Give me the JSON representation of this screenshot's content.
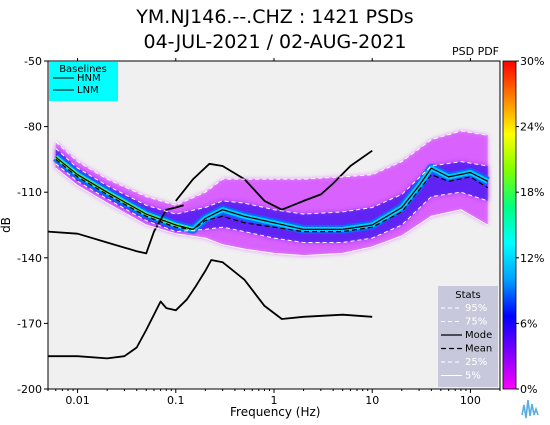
{
  "header": {
    "title_line1": "YM.NJ146.--.CHZ : 1421 PSDs",
    "title_line2": "04-JUL-2021 / 02-AUG-2021",
    "pdf_label": "PSD PDF"
  },
  "colors": {
    "plot_background": "#f0f0f0",
    "baselines_legend_bg": "#00ffff",
    "stats_legend_bg": "#c8c8dc",
    "noise_model_lines": "#000000"
  },
  "chart_data": {
    "type": "heatmap",
    "xlabel": "Frequency (Hz)",
    "ylabel": "dB",
    "x_scale": "log",
    "xlim": [
      0.005,
      200
    ],
    "ylim": [
      -200,
      -50
    ],
    "x_ticks": [
      {
        "value": 0.01,
        "label": "0.01"
      },
      {
        "value": 0.1,
        "label": "0.1"
      },
      {
        "value": 1,
        "label": "1"
      },
      {
        "value": 10,
        "label": "10"
      },
      {
        "value": 100,
        "label": "100"
      }
    ],
    "y_ticks": [
      {
        "value": -50,
        "label": "-50"
      },
      {
        "value": -80,
        "label": "-80"
      },
      {
        "value": -110,
        "label": "-110"
      },
      {
        "value": -140,
        "label": "-140"
      },
      {
        "value": -170,
        "label": "-170"
      },
      {
        "value": -200,
        "label": "-200"
      }
    ],
    "colorbar": {
      "stops": [
        "#ff00ff",
        "#8000ff",
        "#0000ff",
        "#00a0ff",
        "#00ffff",
        "#00ff80",
        "#80ff00",
        "#ffff00",
        "#ff8000",
        "#ff0000"
      ],
      "ticks": [
        "30%",
        "24%",
        "18%",
        "12%",
        "6%",
        "0%"
      ]
    },
    "series": [
      {
        "name": "HNM",
        "points": [
          [
            0.1,
            -114
          ],
          [
            0.15,
            -104
          ],
          [
            0.22,
            -97
          ],
          [
            0.3,
            -98
          ],
          [
            0.5,
            -104
          ],
          [
            0.8,
            -114
          ],
          [
            1.2,
            -118
          ],
          [
            2,
            -114
          ],
          [
            3,
            -111
          ],
          [
            4,
            -106
          ],
          [
            6,
            -98
          ],
          [
            10,
            -91
          ]
        ]
      },
      {
        "name": "LNM",
        "points": [
          [
            0.005,
            -185
          ],
          [
            0.01,
            -185
          ],
          [
            0.02,
            -186
          ],
          [
            0.03,
            -185
          ],
          [
            0.04,
            -181
          ],
          [
            0.05,
            -173
          ],
          [
            0.07,
            -160
          ],
          [
            0.08,
            -163
          ],
          [
            0.1,
            -164
          ],
          [
            0.13,
            -159
          ],
          [
            0.16,
            -153
          ],
          [
            0.2,
            -146
          ],
          [
            0.23,
            -141
          ],
          [
            0.3,
            -142
          ],
          [
            0.5,
            -150
          ],
          [
            0.8,
            -162
          ],
          [
            1.2,
            -168
          ],
          [
            2,
            -167
          ],
          [
            5,
            -166
          ],
          [
            10,
            -167
          ]
        ]
      },
      {
        "name": "LNM_longperiod",
        "points": [
          [
            0.005,
            -128
          ],
          [
            0.01,
            -129
          ],
          [
            0.02,
            -133
          ],
          [
            0.04,
            -137
          ],
          [
            0.05,
            -138
          ],
          [
            0.06,
            -128
          ],
          [
            0.08,
            -118
          ],
          [
            0.1,
            -117
          ],
          [
            0.12,
            -116
          ]
        ]
      },
      {
        "name": "Mode",
        "points": [
          [
            0.006,
            -94
          ],
          [
            0.01,
            -102
          ],
          [
            0.02,
            -110
          ],
          [
            0.05,
            -120
          ],
          [
            0.1,
            -125
          ],
          [
            0.15,
            -127
          ],
          [
            0.2,
            -122
          ],
          [
            0.3,
            -118
          ],
          [
            0.5,
            -121
          ],
          [
            1,
            -124
          ],
          [
            2,
            -127
          ],
          [
            5,
            -127
          ],
          [
            10,
            -125
          ],
          [
            20,
            -117
          ],
          [
            30,
            -107
          ],
          [
            40,
            -99
          ],
          [
            60,
            -103
          ],
          [
            100,
            -101
          ],
          [
            150,
            -105
          ]
        ]
      },
      {
        "name": "Mean",
        "points": [
          [
            0.006,
            -95
          ],
          [
            0.01,
            -103
          ],
          [
            0.02,
            -111
          ],
          [
            0.05,
            -121
          ],
          [
            0.1,
            -126
          ],
          [
            0.15,
            -127
          ],
          [
            0.2,
            -123
          ],
          [
            0.3,
            -121
          ],
          [
            0.5,
            -124
          ],
          [
            1,
            -126
          ],
          [
            2,
            -128
          ],
          [
            5,
            -128
          ],
          [
            10,
            -126
          ],
          [
            20,
            -119
          ],
          [
            30,
            -109
          ],
          [
            40,
            -102
          ],
          [
            60,
            -105
          ],
          [
            100,
            -103
          ],
          [
            150,
            -108
          ]
        ]
      },
      {
        "name": "95%",
        "points": [
          [
            0.006,
            -87
          ],
          [
            0.01,
            -96
          ],
          [
            0.02,
            -104
          ],
          [
            0.05,
            -112
          ],
          [
            0.1,
            -116
          ],
          [
            0.2,
            -110
          ],
          [
            0.3,
            -104
          ],
          [
            0.5,
            -104
          ],
          [
            1,
            -104
          ],
          [
            2,
            -104
          ],
          [
            5,
            -103
          ],
          [
            10,
            -102
          ],
          [
            20,
            -96
          ],
          [
            40,
            -86
          ],
          [
            80,
            -82
          ],
          [
            150,
            -84
          ]
        ]
      },
      {
        "name": "75%",
        "points": [
          [
            0.006,
            -90
          ],
          [
            0.01,
            -99
          ],
          [
            0.02,
            -107
          ],
          [
            0.05,
            -116
          ],
          [
            0.1,
            -120
          ],
          [
            0.2,
            -117
          ],
          [
            0.3,
            -114
          ],
          [
            0.5,
            -115
          ],
          [
            1,
            -118
          ],
          [
            2,
            -120
          ],
          [
            5,
            -119
          ],
          [
            10,
            -117
          ],
          [
            20,
            -111
          ],
          [
            40,
            -98
          ],
          [
            80,
            -96
          ],
          [
            150,
            -98
          ]
        ]
      },
      {
        "name": "25%",
        "points": [
          [
            0.006,
            -97
          ],
          [
            0.01,
            -105
          ],
          [
            0.02,
            -113
          ],
          [
            0.05,
            -123
          ],
          [
            0.1,
            -128
          ],
          [
            0.2,
            -127
          ],
          [
            0.3,
            -126
          ],
          [
            0.5,
            -128
          ],
          [
            1,
            -131
          ],
          [
            2,
            -133
          ],
          [
            5,
            -133
          ],
          [
            10,
            -131
          ],
          [
            20,
            -125
          ],
          [
            40,
            -112
          ],
          [
            80,
            -110
          ],
          [
            150,
            -114
          ]
        ]
      },
      {
        "name": "5%",
        "points": [
          [
            0.006,
            -99
          ],
          [
            0.01,
            -107
          ],
          [
            0.02,
            -115
          ],
          [
            0.05,
            -125
          ],
          [
            0.1,
            -129
          ],
          [
            0.2,
            -131
          ],
          [
            0.3,
            -134
          ],
          [
            0.5,
            -136
          ],
          [
            1,
            -138
          ],
          [
            2,
            -139
          ],
          [
            5,
            -138
          ],
          [
            10,
            -135
          ],
          [
            20,
            -130
          ],
          [
            40,
            -121
          ],
          [
            80,
            -118
          ],
          [
            150,
            -125
          ]
        ]
      }
    ],
    "legend_baselines": {
      "title": "Baselines",
      "items": [
        "HNM",
        "LNM"
      ],
      "position": "top-left"
    },
    "legend_stats": {
      "title": "Stats",
      "items": [
        "95%",
        "75%",
        "Mode",
        "Mean",
        "25%",
        "5%"
      ],
      "position": "bottom-right"
    }
  }
}
